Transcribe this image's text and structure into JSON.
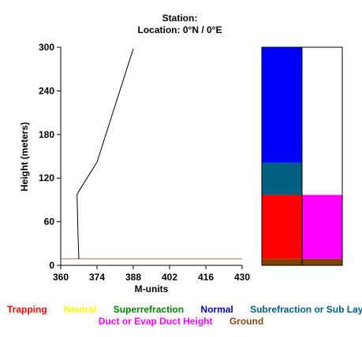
{
  "header": {
    "station_line": "Station:",
    "location_line": "Location:  0°N /  0°E"
  },
  "chart_data": {
    "type": "line",
    "xlabel": "M-units",
    "ylabel": "Height (meters)",
    "xlim": [
      360,
      430
    ],
    "ylim": [
      0,
      300
    ],
    "x_ticks": [
      "360",
      "374",
      "388",
      "402",
      "416",
      "430"
    ],
    "y_ticks": [
      "0",
      "60",
      "120",
      "180",
      "240",
      "300"
    ],
    "series": [
      {
        "points": [
          {
            "x": 367.0,
            "y": 9
          },
          {
            "x": 366.7,
            "y": 40
          },
          {
            "x": 366.3,
            "y": 97
          },
          {
            "x": 367.0,
            "y": 102
          },
          {
            "x": 374.0,
            "y": 142
          },
          {
            "x": 388.0,
            "y": 298
          }
        ]
      }
    ],
    "ground_height": 9,
    "layer_columns": [
      [
        {
          "from": 0,
          "to": 9,
          "category": "Ground"
        },
        {
          "from": 9,
          "to": 97,
          "category": "Trapping"
        },
        {
          "from": 97,
          "to": 141,
          "category": "Subrefraction or Sub Layer"
        },
        {
          "from": 141,
          "to": 300,
          "category": "Normal"
        }
      ],
      [
        {
          "from": 0,
          "to": 9,
          "category": "Ground"
        },
        {
          "from": 9,
          "to": 97,
          "category": "Duct or Evap Duct Height"
        },
        {
          "from": 97,
          "to": 300,
          "category": "none"
        }
      ]
    ]
  },
  "legend": {
    "row1": [
      {
        "label": "Trapping",
        "color": "#ff0000"
      },
      {
        "label": "Neutral",
        "color": "#ffff00"
      },
      {
        "label": "Superrefraction",
        "color": "#008000"
      },
      {
        "label": "Normal",
        "color": "#0000c0"
      },
      {
        "label": "Subrefraction or Sub Layer",
        "color": "#006080"
      }
    ],
    "row2": [
      {
        "label": "Duct or Evap Duct Height",
        "color": "#ff00ff"
      },
      {
        "label": "Ground",
        "color": "#8b4513"
      }
    ]
  },
  "colors": {
    "Trapping": "#ff0000",
    "Neutral": "#ffff00",
    "Superrefraction": "#008000",
    "Normal": "#0000ff",
    "Subrefraction or Sub Layer": "#006080",
    "Duct or Evap Duct Height": "#ff00ff",
    "Ground": "#804000",
    "none": "#ffffff",
    "ground_line": "#b07030"
  }
}
